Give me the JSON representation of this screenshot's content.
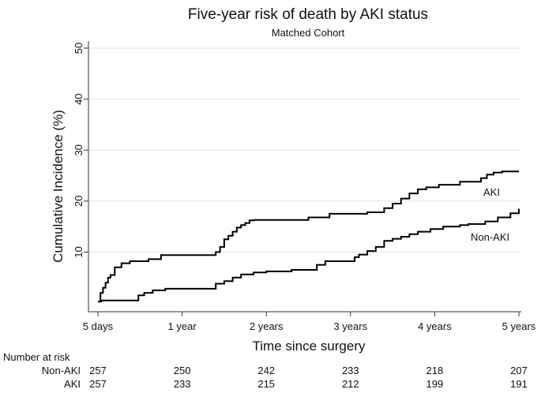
{
  "chart_data": {
    "type": "line",
    "step": true,
    "title": "Five-year risk of death by AKI status",
    "subtitle": "Matched Cohort",
    "xlabel": "Time since surgery",
    "ylabel": "Cumulative Incidence (%)",
    "xlim": [
      0,
      5
    ],
    "ylim": [
      0,
      50
    ],
    "grid": true,
    "x_ticks": [
      0,
      1,
      2,
      3,
      4,
      5
    ],
    "x_tick_labels": [
      "5 days",
      "1 year",
      "2 years",
      "3 years",
      "4 years",
      "5 years"
    ],
    "y_ticks": [
      10,
      20,
      30,
      40,
      50
    ],
    "y_tick_labels": [
      "10",
      "20",
      "30",
      "40",
      "50"
    ],
    "series": [
      {
        "name": "AKI",
        "label": "AKI",
        "x": [
          0,
          0.03,
          0.06,
          0.09,
          0.12,
          0.15,
          0.2,
          0.28,
          0.38,
          0.6,
          0.75,
          1.0,
          1.4,
          1.45,
          1.5,
          1.55,
          1.6,
          1.65,
          1.7,
          1.75,
          1.8,
          1.85,
          1.95,
          2.0,
          2.5,
          2.75,
          3.2,
          3.4,
          3.5,
          3.6,
          3.7,
          3.8,
          3.9,
          4.05,
          4.3,
          4.55,
          4.62,
          4.7,
          4.8,
          5.0
        ],
        "y": [
          0.3,
          2,
          3,
          4,
          5,
          5.5,
          7,
          7.8,
          8.2,
          8.6,
          9.4,
          9.4,
          10,
          11,
          12.5,
          13.2,
          14,
          14.8,
          15.3,
          15.7,
          16.2,
          16.3,
          16.3,
          16.3,
          16.8,
          17.5,
          17.8,
          18.6,
          19.5,
          20.5,
          21.5,
          22.3,
          22.7,
          23.2,
          23.8,
          24.5,
          25.2,
          25.6,
          25.8,
          25.8
        ]
      },
      {
        "name": "Non-AKI",
        "label": "Non-AKI",
        "x": [
          0,
          0.04,
          0.1,
          0.2,
          0.48,
          0.55,
          0.65,
          0.8,
          1.4,
          1.5,
          1.6,
          1.7,
          1.85,
          2.0,
          2.3,
          2.6,
          2.7,
          2.8,
          3.0,
          3.05,
          3.1,
          3.2,
          3.3,
          3.4,
          3.5,
          3.6,
          3.7,
          3.8,
          3.95,
          4.1,
          4.3,
          4.4,
          4.6,
          4.75,
          4.9,
          5.0
        ],
        "y": [
          0.3,
          0.5,
          0.5,
          0.5,
          1.5,
          2,
          2.5,
          2.8,
          3.8,
          4.3,
          5,
          5.6,
          6.0,
          6.2,
          6.5,
          7.5,
          8.2,
          8.2,
          8.2,
          9.0,
          9.5,
          10.2,
          11.0,
          12.2,
          12.6,
          13.0,
          13.5,
          14.0,
          14.5,
          15.0,
          15.3,
          15.5,
          16.0,
          16.8,
          17.6,
          18.5
        ]
      }
    ],
    "risk_table": {
      "header": "Number at risk",
      "rows": [
        {
          "label": "Non-AKI",
          "values": [
            257,
            250,
            242,
            233,
            218,
            207
          ]
        },
        {
          "label": "AKI",
          "values": [
            257,
            233,
            215,
            212,
            199,
            191
          ]
        }
      ]
    }
  },
  "colors": {
    "line": "#000000",
    "grid": "#e3e3e3",
    "axis": "#333333"
  }
}
